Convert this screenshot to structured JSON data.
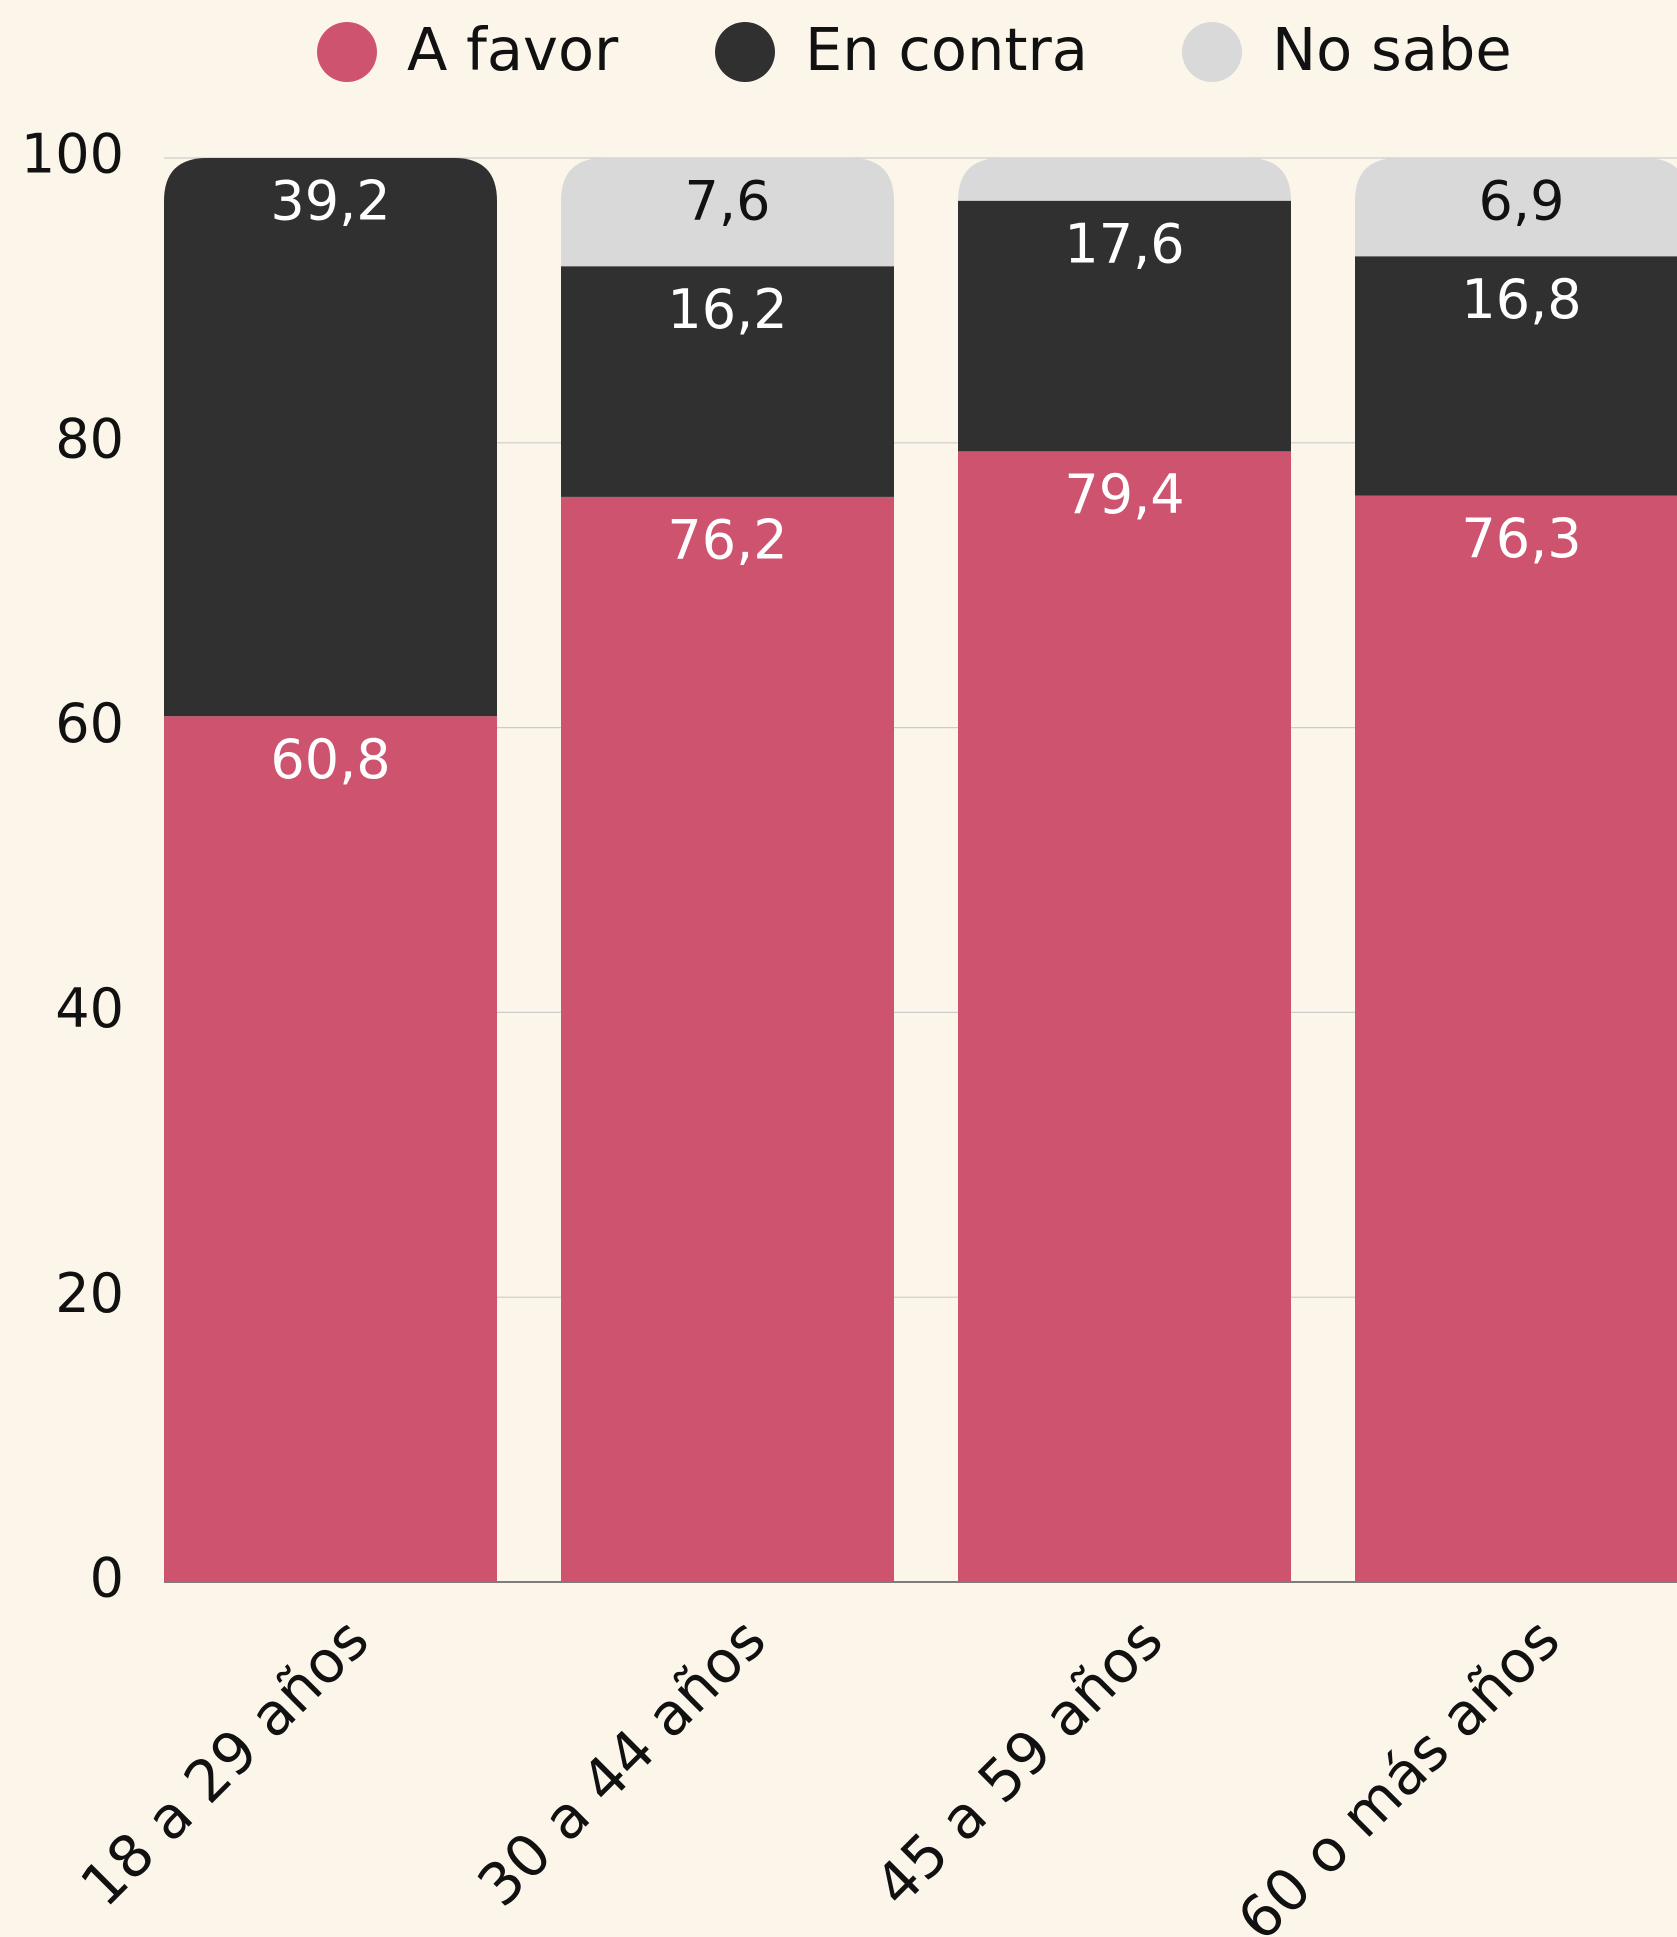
{
  "chart_data": {
    "type": "stacked_bar",
    "categories": [
      "18 a 29 años",
      "30 a 44 años",
      "45 a 59 años",
      "60 o más años"
    ],
    "series": [
      {
        "name": "A favor",
        "color": "#cd536f",
        "values": [
          60.8,
          76.2,
          79.4,
          76.3
        ],
        "value_labels": [
          "60,8",
          "76,2",
          "79,4",
          "76,3"
        ]
      },
      {
        "name": "En contra",
        "color": "#303030",
        "values": [
          39.2,
          16.2,
          17.6,
          16.8
        ],
        "value_labels": [
          "39,2",
          "16,2",
          "17,6",
          "16,8"
        ]
      },
      {
        "name": "No sabe",
        "color": "#d9d9d9",
        "values": [
          0,
          7.6,
          3.0,
          6.9
        ],
        "value_labels": [
          null,
          "7,6",
          null,
          "6,9"
        ]
      }
    ],
    "ylim": [
      0,
      100
    ],
    "yticks": [
      0,
      20,
      40,
      60,
      80,
      100
    ],
    "grid": true,
    "legend": "top"
  }
}
